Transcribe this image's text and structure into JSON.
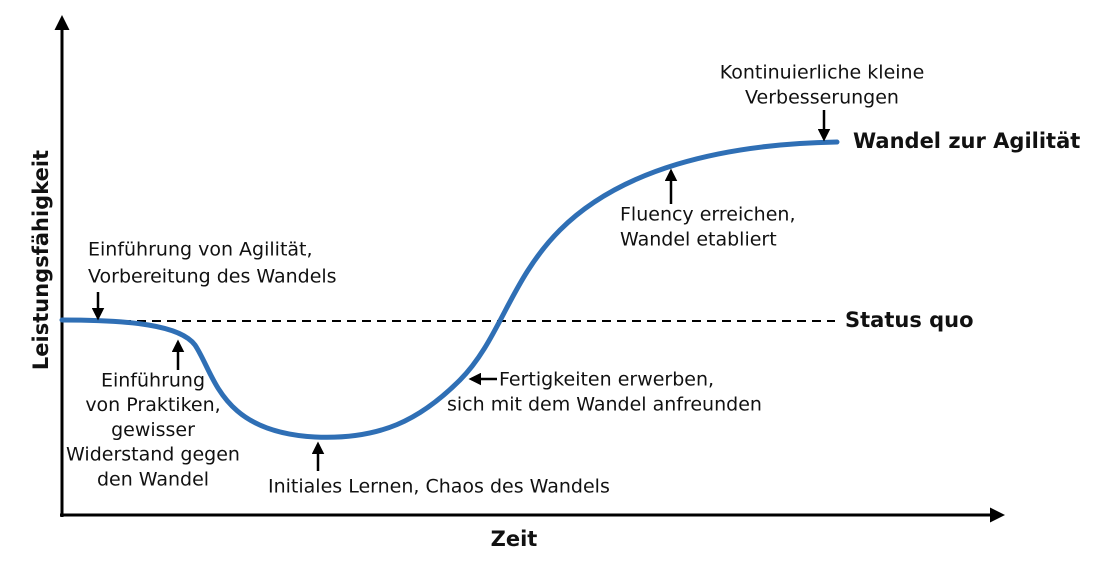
{
  "axes": {
    "x_label": "Zeit",
    "y_label": "Leistungsfähigkeit"
  },
  "labels": {
    "status_quo": "Status quo",
    "target": "Wandel zur Agilität"
  },
  "annotations": [
    {
      "lines": [
        "Einführung von Agilität,",
        "Vorbereitung des Wandels"
      ]
    },
    {
      "lines": [
        "Einführung",
        "von Praktiken,",
        "gewisser",
        "Widerstand gegen",
        "den Wandel"
      ]
    },
    {
      "lines": [
        "Initiales Lernen, Chaos des Wandels"
      ]
    },
    {
      "lines": [
        "Fertigkeiten erwerben,",
        "sich mit dem Wandel anfreunden"
      ]
    },
    {
      "lines": [
        "Fluency erreichen,",
        "Wandel etabliert"
      ]
    },
    {
      "lines": [
        "Kontinuierliche kleine",
        "Verbesserungen"
      ]
    }
  ]
}
